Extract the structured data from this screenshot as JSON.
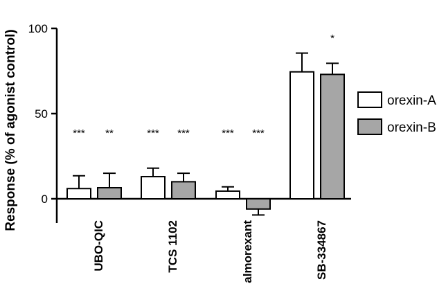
{
  "chart_data": {
    "type": "bar",
    "ylabel": "Response (% of agonist control)",
    "xlabel": "",
    "ylim": [
      -8,
      100
    ],
    "yticks": [
      0,
      50,
      100
    ],
    "ytick_labels": [
      "0",
      "50",
      "100"
    ],
    "categories": [
      "UBO-QIC",
      "TCS 1102",
      "almorexant",
      "SB-334867"
    ],
    "series": [
      {
        "name": "orexin-A",
        "color": "#ffffff",
        "values": [
          6,
          13,
          4.5,
          74.5
        ],
        "errors": [
          7.5,
          5,
          2.5,
          11
        ],
        "significance": [
          "***",
          "***",
          "***",
          ""
        ]
      },
      {
        "name": "orexin-B",
        "color": "#a6a6a6",
        "values": [
          6.5,
          10,
          -6,
          73
        ],
        "errors": [
          8.5,
          5,
          3.5,
          6.5
        ],
        "significance": [
          "**",
          "***",
          "***",
          "*"
        ]
      }
    ],
    "legend_position": "right"
  }
}
